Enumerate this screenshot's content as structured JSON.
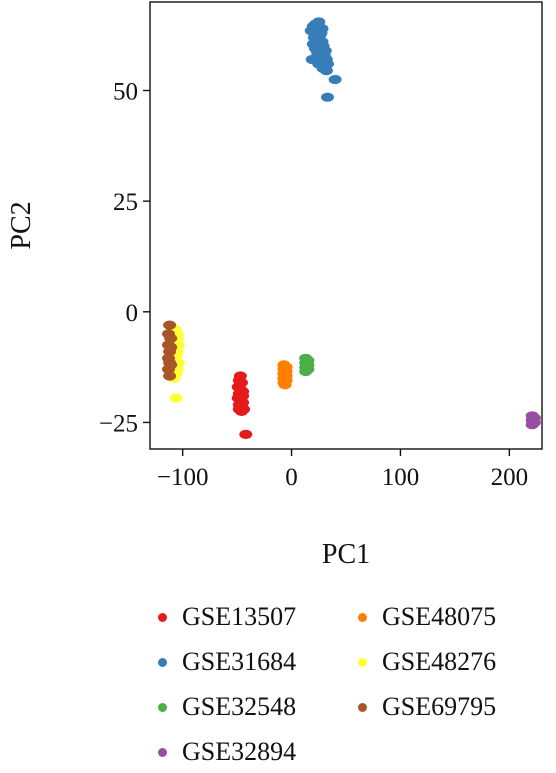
{
  "chart_data": {
    "type": "scatter",
    "title": "",
    "xlabel": "PC1",
    "ylabel": "PC2",
    "xlim": [
      -130,
      230
    ],
    "ylim": [
      -31,
      70
    ],
    "xticks": [
      -100,
      0,
      100,
      200
    ],
    "yticks": [
      -25,
      0,
      25,
      50
    ],
    "xtick_labels": [
      "−100",
      "0",
      "100",
      "200"
    ],
    "ytick_labels": [
      "−25",
      "0",
      "25",
      "50"
    ],
    "grid": false,
    "legend": {
      "position": "bottom",
      "columns": 2
    },
    "series": [
      {
        "name": "GSE13507",
        "color": "#e41a1c",
        "points": [
          [
            -47,
            -14.5
          ],
          [
            -48,
            -15.5
          ],
          [
            -46,
            -16
          ],
          [
            -49,
            -17
          ],
          [
            -47,
            -17.5
          ],
          [
            -45,
            -18
          ],
          [
            -48,
            -18.5
          ],
          [
            -46,
            -19
          ],
          [
            -49,
            -19.5
          ],
          [
            -47,
            -20
          ],
          [
            -45,
            -20.5
          ],
          [
            -48,
            -21
          ],
          [
            -46,
            -21.5
          ],
          [
            -48,
            -22
          ],
          [
            -46,
            -22.5
          ],
          [
            -44,
            -22
          ],
          [
            -47,
            -16
          ],
          [
            -45,
            -19
          ],
          [
            -42,
            -27.7
          ]
        ]
      },
      {
        "name": "GSE31684",
        "color": "#377eb8",
        "points": [
          [
            20,
            64.5
          ],
          [
            22,
            65
          ],
          [
            25,
            65.5
          ],
          [
            28,
            64
          ],
          [
            18,
            63.5
          ],
          [
            23,
            63
          ],
          [
            26,
            62.5
          ],
          [
            21,
            62
          ],
          [
            24,
            61.5
          ],
          [
            28,
            61
          ],
          [
            20,
            60.5
          ],
          [
            25,
            60
          ],
          [
            29,
            60
          ],
          [
            22,
            59.5
          ],
          [
            27,
            59
          ],
          [
            31,
            59
          ],
          [
            24,
            58.5
          ],
          [
            30,
            58
          ],
          [
            26,
            57.5
          ],
          [
            32,
            57
          ],
          [
            28,
            56.5
          ],
          [
            21,
            57
          ],
          [
            25,
            56
          ],
          [
            30,
            55.5
          ],
          [
            33,
            56
          ],
          [
            29,
            55
          ],
          [
            32,
            54.5
          ],
          [
            19,
            57
          ],
          [
            27,
            63
          ],
          [
            23,
            60
          ],
          [
            40,
            52.5
          ],
          [
            33,
            48.5
          ]
        ]
      },
      {
        "name": "GSE32548",
        "color": "#4daf4a",
        "points": [
          [
            13,
            -10.5
          ],
          [
            15,
            -11
          ],
          [
            13,
            -11.5
          ],
          [
            15,
            -12
          ],
          [
            13,
            -12.5
          ],
          [
            15,
            -13
          ],
          [
            13,
            -13.5
          ],
          [
            14,
            -12
          ],
          [
            14,
            -11
          ]
        ]
      },
      {
        "name": "GSE32894",
        "color": "#984ea3",
        "points": [
          [
            221,
            -23.5
          ],
          [
            223,
            -24
          ],
          [
            221,
            -24.5
          ],
          [
            223,
            -25
          ],
          [
            221,
            -25.5
          ],
          [
            222,
            -24.8
          ]
        ]
      },
      {
        "name": "GSE48075",
        "color": "#ff7f00",
        "points": [
          [
            -7,
            -12
          ],
          [
            -5,
            -12.5
          ],
          [
            -7,
            -13
          ],
          [
            -5,
            -13.5
          ],
          [
            -7,
            -14
          ],
          [
            -5,
            -14.5
          ],
          [
            -7,
            -15
          ],
          [
            -5,
            -15.5
          ],
          [
            -7,
            -16
          ],
          [
            -6,
            -16.5
          ],
          [
            -6,
            -13.5
          ]
        ]
      },
      {
        "name": "GSE48276",
        "color": "#ffff33",
        "points": [
          [
            -110,
            -3.5
          ],
          [
            -107,
            -4
          ],
          [
            -105,
            -5
          ],
          [
            -109,
            -5.5
          ],
          [
            -106,
            -6.5
          ],
          [
            -110,
            -7
          ],
          [
            -104,
            -7.5
          ],
          [
            -108,
            -8
          ],
          [
            -105,
            -9
          ],
          [
            -109,
            -9.5
          ],
          [
            -106,
            -10
          ],
          [
            -110,
            -11
          ],
          [
            -104,
            -11.5
          ],
          [
            -108,
            -12
          ],
          [
            -105,
            -13
          ],
          [
            -109,
            -13.5
          ],
          [
            -106,
            -14
          ],
          [
            -108,
            -15
          ],
          [
            -105,
            -6
          ],
          [
            -107,
            -11
          ],
          [
            -106,
            -19.5
          ]
        ]
      },
      {
        "name": "GSE69795",
        "color": "#a65628",
        "points": [
          [
            -112,
            -3
          ],
          [
            -113,
            -5
          ],
          [
            -111,
            -6
          ],
          [
            -113,
            -7.5
          ],
          [
            -112,
            -9
          ],
          [
            -113,
            -10.5
          ],
          [
            -111,
            -12
          ],
          [
            -113,
            -13
          ],
          [
            -112,
            -14.5
          ],
          [
            -111,
            -8
          ],
          [
            -112,
            -11.5
          ]
        ]
      }
    ]
  }
}
